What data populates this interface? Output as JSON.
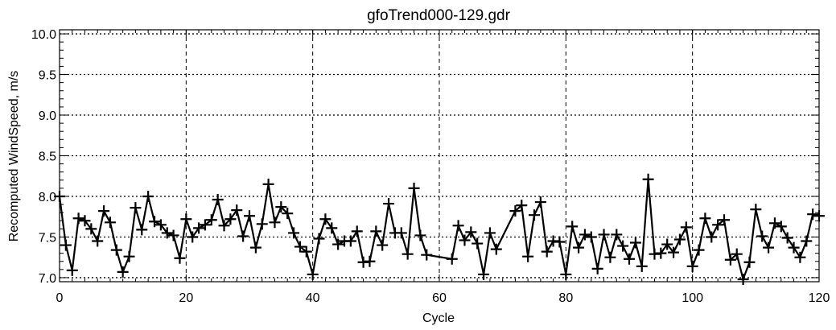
{
  "chart_data": {
    "type": "line",
    "title": "gfoTrend000-129.gdr",
    "xlabel": "Cycle",
    "ylabel": "Recomputed WindSpeed, m/s",
    "xlim": [
      0,
      120
    ],
    "ylim": [
      6.95,
      10.05
    ],
    "xticks": [
      0,
      20,
      40,
      60,
      80,
      100,
      120
    ],
    "yticks": [
      7.0,
      7.5,
      8.0,
      8.5,
      9.0,
      9.5,
      10.0
    ],
    "xtick_labels": [
      "0",
      "20",
      "40",
      "60",
      "80",
      "100",
      "120"
    ],
    "ytick_labels": [
      "7.0",
      "7.5",
      "8.0",
      "8.5",
      "9.0",
      "9.5",
      "10.0"
    ],
    "grid": true,
    "marker": "plus",
    "series": [
      {
        "x": [
          0,
          1,
          2,
          3,
          4,
          5,
          6,
          7,
          8,
          9,
          10,
          11,
          12,
          13,
          14,
          15,
          16,
          17,
          18,
          19,
          20,
          21,
          22,
          23,
          24,
          25,
          26,
          27,
          28,
          29,
          30,
          31,
          32,
          33,
          34,
          35,
          36,
          37,
          38,
          39,
          40,
          41,
          42,
          43,
          44,
          45,
          46,
          47,
          48,
          49,
          50,
          51,
          52,
          53,
          54,
          55,
          56,
          57,
          58,
          62,
          63,
          64,
          65,
          66,
          67,
          68,
          69,
          72,
          73,
          74,
          75,
          76,
          77,
          78,
          79,
          80,
          81,
          82,
          83,
          84,
          85,
          86,
          87,
          88,
          89,
          90,
          91,
          92,
          93,
          94,
          95,
          96,
          97,
          98,
          99,
          100,
          101,
          102,
          103,
          104,
          105,
          106,
          107,
          108,
          109,
          110,
          111,
          112,
          113,
          114,
          115,
          116,
          117,
          118,
          119,
          120
        ],
        "y": [
          8.0,
          7.4,
          7.09,
          7.73,
          7.7,
          7.6,
          7.45,
          7.82,
          7.68,
          7.34,
          7.07,
          7.26,
          7.86,
          7.59,
          8.0,
          7.69,
          7.65,
          7.55,
          7.52,
          7.24,
          7.72,
          7.5,
          7.61,
          7.65,
          7.71,
          7.96,
          7.64,
          7.72,
          7.83,
          7.51,
          7.76,
          7.37,
          7.66,
          8.15,
          7.68,
          7.87,
          7.79,
          7.55,
          7.38,
          7.32,
          7.04,
          7.48,
          7.72,
          7.61,
          7.41,
          7.45,
          7.45,
          7.57,
          7.19,
          7.2,
          7.57,
          7.4,
          7.91,
          7.55,
          7.55,
          7.29,
          8.1,
          7.52,
          7.28,
          7.23,
          7.64,
          7.46,
          7.56,
          7.42,
          7.04,
          7.55,
          7.35,
          7.82,
          7.89,
          7.26,
          7.77,
          7.93,
          7.32,
          7.45,
          7.44,
          7.04,
          7.63,
          7.37,
          7.53,
          7.5,
          7.11,
          7.53,
          7.25,
          7.53,
          7.39,
          7.23,
          7.43,
          7.14,
          8.21,
          7.29,
          7.3,
          7.41,
          7.31,
          7.47,
          7.62,
          7.14,
          7.34,
          7.73,
          7.5,
          7.65,
          7.71,
          7.22,
          7.29,
          6.98,
          7.19,
          7.84,
          7.51,
          7.37,
          7.67,
          7.63,
          7.49,
          7.37,
          7.25,
          7.45,
          7.78,
          7.76
        ]
      }
    ]
  }
}
